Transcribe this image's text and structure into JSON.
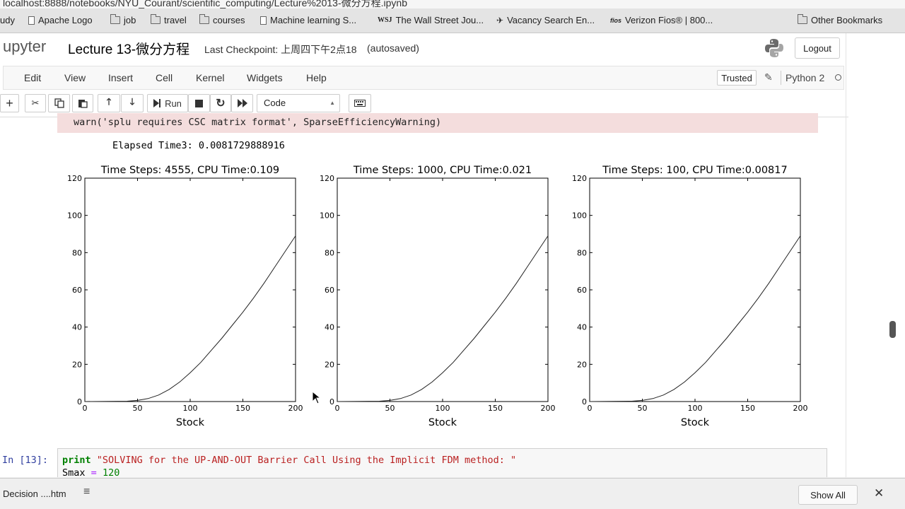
{
  "browser": {
    "url": "localhost:8888/notebooks/NYU_Courant/scientific_computing/Lecture%2013-微分方程.ipynb",
    "bookmarks": [
      "udy",
      "Apache Logo",
      "job",
      "travel",
      "courses",
      "Machine learning S...",
      "The Wall Street Jou...",
      "Vacancy Search En...",
      "Verizon Fios® | 800...",
      "Other Bookmarks"
    ]
  },
  "header": {
    "logo_text": "upyter",
    "notebook_title": "Lecture 13-微分方程",
    "checkpoint": "Last Checkpoint: 上周四下午2点18",
    "autosaved": "(autosaved)",
    "logout": "Logout"
  },
  "menu": {
    "items": [
      "Edit",
      "View",
      "Insert",
      "Cell",
      "Kernel",
      "Widgets",
      "Help"
    ],
    "trusted": "Trusted",
    "kernel": "Python 2"
  },
  "toolbar": {
    "run_label": "Run",
    "cell_type": "Code"
  },
  "output": {
    "stderr_line": "warn('splu requires CSC matrix format', SparseEfficiencyWarning)",
    "elapsed": "Elapsed Time3: 0.0081729888916"
  },
  "chart_data": [
    {
      "type": "line",
      "title": "Time Steps: 4555, CPU Time:0.109",
      "xlabel": "Stock",
      "ylabel": "",
      "xlim": [
        0,
        200
      ],
      "ylim": [
        0,
        120
      ],
      "xticks": [
        0,
        50,
        100,
        150,
        200
      ],
      "yticks": [
        0,
        20,
        40,
        60,
        80,
        100,
        120
      ],
      "x": [
        0,
        40,
        50,
        60,
        70,
        80,
        90,
        100,
        110,
        120,
        130,
        140,
        150,
        160,
        170,
        180,
        190,
        200
      ],
      "y": [
        0,
        0.2,
        0.6,
        1.6,
        3.5,
        6.5,
        10.5,
        15.5,
        21,
        27.5,
        34,
        41,
        48,
        55.5,
        63.5,
        72,
        80.5,
        89
      ]
    },
    {
      "type": "line",
      "title": "Time Steps: 1000, CPU Time:0.021",
      "xlabel": "Stock",
      "ylabel": "",
      "xlim": [
        0,
        200
      ],
      "ylim": [
        0,
        120
      ],
      "xticks": [
        0,
        50,
        100,
        150,
        200
      ],
      "yticks": [
        0,
        20,
        40,
        60,
        80,
        100,
        120
      ],
      "x": [
        0,
        40,
        50,
        60,
        70,
        80,
        90,
        100,
        110,
        120,
        130,
        140,
        150,
        160,
        170,
        180,
        190,
        200
      ],
      "y": [
        0,
        0.2,
        0.6,
        1.6,
        3.5,
        6.5,
        10.5,
        15.5,
        21,
        27.5,
        34,
        41,
        48,
        55.5,
        63.5,
        72,
        80.5,
        89
      ]
    },
    {
      "type": "line",
      "title": "Time Steps: 100, CPU Time:0.00817",
      "xlabel": "Stock",
      "ylabel": "",
      "xlim": [
        0,
        200
      ],
      "ylim": [
        0,
        120
      ],
      "xticks": [
        0,
        50,
        100,
        150,
        200
      ],
      "yticks": [
        0,
        20,
        40,
        60,
        80,
        100,
        120
      ],
      "x": [
        0,
        40,
        50,
        60,
        70,
        80,
        90,
        100,
        110,
        120,
        130,
        140,
        150,
        160,
        170,
        180,
        190,
        200
      ],
      "y": [
        0,
        0.2,
        0.6,
        1.6,
        3.5,
        6.5,
        10.5,
        15.5,
        21,
        27.5,
        34,
        41,
        48,
        55.5,
        63.5,
        72,
        80.5,
        89
      ]
    }
  ],
  "code_cell": {
    "prompt": "In [13]:",
    "line1_keyword": "print",
    "line1_string": "\"SOLVING for the UP-AND-OUT Barrier Call Using the Implicit FDM method: \"",
    "line2_var": "Smax",
    "line2_op": "=",
    "line2_value": "120"
  },
  "downloads": {
    "file": "Decision ....htm",
    "show_all": "Show All"
  }
}
